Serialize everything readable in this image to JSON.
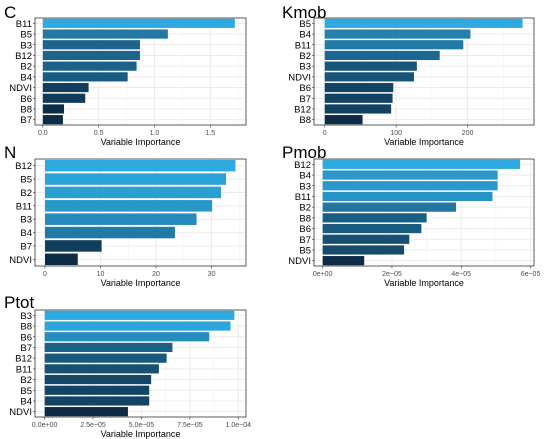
{
  "chart_data": [
    {
      "type": "bar",
      "orientation": "horizontal",
      "title": "C",
      "xlabel": "Variable Importance",
      "ylabel": "",
      "categories": [
        "B11",
        "B5",
        "B3",
        "B12",
        "B2",
        "B4",
        "NDVI",
        "B6",
        "B8",
        "B7"
      ],
      "values": [
        1.72,
        1.12,
        0.87,
        0.87,
        0.84,
        0.76,
        0.41,
        0.38,
        0.19,
        0.18
      ],
      "xlim": [
        -0.07,
        1.82
      ],
      "xticks": [
        0.0,
        0.5,
        1.0,
        1.5
      ],
      "xtick_labels": [
        "0.0",
        "0.5",
        "1.0",
        "1.5"
      ],
      "grid": true
    },
    {
      "type": "bar",
      "orientation": "horizontal",
      "title": "Kmob",
      "xlabel": "Variable Importance",
      "ylabel": "",
      "categories": [
        "B5",
        "B4",
        "B11",
        "B2",
        "B3",
        "NDVI",
        "B6",
        "B7",
        "B12",
        "B8"
      ],
      "values": [
        277,
        204,
        194,
        161,
        129,
        125,
        96,
        95,
        93,
        53
      ],
      "xlim": [
        -15,
        293
      ],
      "xticks": [
        0,
        100,
        200
      ],
      "xtick_labels": [
        "0",
        "100",
        "200"
      ],
      "grid": true
    },
    {
      "type": "bar",
      "orientation": "horizontal",
      "title": "N",
      "xlabel": "Variable Importance",
      "ylabel": "",
      "categories": [
        "B12",
        "B5",
        "B2",
        "B11",
        "B3",
        "B4",
        "B7",
        "NDVI"
      ],
      "values": [
        34.3,
        32.6,
        31.7,
        30.1,
        27.3,
        23.4,
        10.2,
        5.9
      ],
      "xlim": [
        -1.8,
        36.2
      ],
      "xticks": [
        0,
        10,
        20,
        30
      ],
      "xtick_labels": [
        "0",
        "10",
        "20",
        "30"
      ],
      "grid": true
    },
    {
      "type": "bar",
      "orientation": "horizontal",
      "title": "Pmob",
      "xlabel": "Variable Importance",
      "ylabel": "",
      "categories": [
        "B12",
        "B4",
        "B3",
        "B11",
        "B2",
        "B8",
        "B6",
        "B7",
        "B5",
        "NDVI"
      ],
      "values": [
        5.7e-05,
        5.05e-05,
        5.05e-05,
        4.9e-05,
        3.85e-05,
        3e-05,
        2.85e-05,
        2.5e-05,
        2.35e-05,
        1.2e-05
      ],
      "xlim": [
        -2.5e-06,
        6.1e-05
      ],
      "xticks": [
        0,
        2e-05,
        4e-05,
        6e-05
      ],
      "xtick_labels": [
        "0e+00",
        "2e−05",
        "4e−05",
        "6e−05"
      ],
      "grid": true
    },
    {
      "type": "bar",
      "orientation": "horizontal",
      "title": "Ptot",
      "xlabel": "Variable Importance",
      "ylabel": "",
      "categories": [
        "B3",
        "B8",
        "B6",
        "B7",
        "B12",
        "B11",
        "B2",
        "B5",
        "B4",
        "NDVI"
      ],
      "values": [
        9.8e-05,
        9.6e-05,
        8.5e-05,
        6.6e-05,
        6.3e-05,
        5.9e-05,
        5.5e-05,
        5.4e-05,
        5.4e-05,
        4.3e-05
      ],
      "xlim": [
        -5e-06,
        0.000104
      ],
      "xticks": [
        0,
        2.5e-05,
        5e-05,
        7.5e-05,
        0.0001
      ],
      "xtick_labels": [
        "0.0e+00",
        "2.5e−05",
        "5.0e−05",
        "7.5e−05",
        "1.0e−04"
      ],
      "grid": true
    }
  ],
  "colors": {
    "bar_high": "#2eaae1",
    "bar_low": "#0d2b45",
    "grid": "#ebebeb",
    "panel_border": "#333333",
    "text": "#000000",
    "tick_text": "#4d4d4d"
  }
}
